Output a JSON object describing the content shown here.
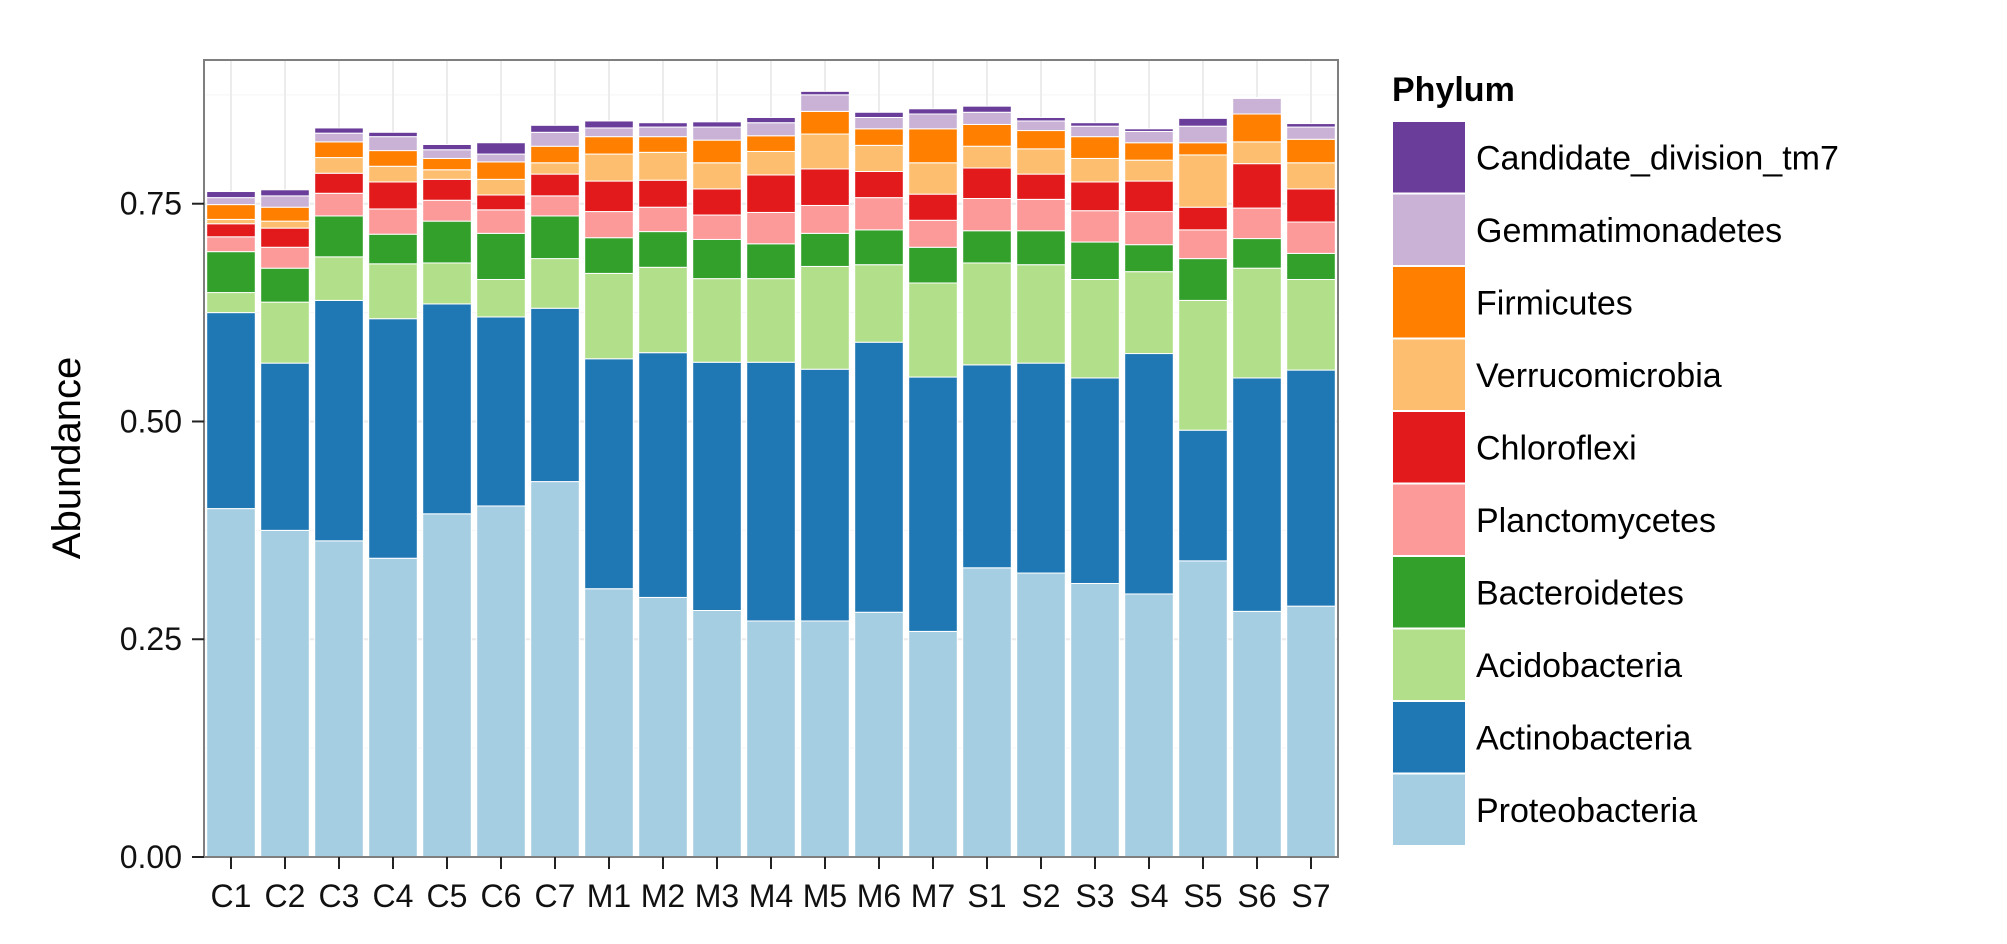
{
  "chart_data": {
    "type": "bar",
    "stacked": true,
    "title": "",
    "xlabel": "",
    "ylabel": "Abundance",
    "ylim": [
      0,
      0.915
    ],
    "yticks": [
      0,
      0.25,
      0.5,
      0.75
    ],
    "ytick_labels": [
      "0.00",
      "0.25",
      "0.50",
      "0.75"
    ],
    "grid": true,
    "legend_position": "right",
    "legend_title": "Phylum",
    "categories": [
      "C1",
      "C2",
      "C3",
      "C4",
      "C5",
      "C6",
      "C7",
      "M1",
      "M2",
      "M3",
      "M4",
      "M5",
      "M6",
      "M7",
      "S1",
      "S2",
      "S3",
      "S4",
      "S5",
      "S6",
      "S7"
    ],
    "series": [
      {
        "name": "Proteobacteria",
        "color": "#a6cee3",
        "values": [
          0.4,
          0.375,
          0.363,
          0.343,
          0.394,
          0.403,
          0.431,
          0.308,
          0.298,
          0.283,
          0.271,
          0.271,
          0.281,
          0.259,
          0.332,
          0.326,
          0.314,
          0.302,
          0.34,
          0.282,
          0.288
        ]
      },
      {
        "name": "Actinobacteria",
        "color": "#1f78b4",
        "values": [
          0.225,
          0.192,
          0.276,
          0.275,
          0.241,
          0.217,
          0.199,
          0.264,
          0.281,
          0.285,
          0.297,
          0.289,
          0.31,
          0.292,
          0.233,
          0.241,
          0.236,
          0.276,
          0.15,
          0.268,
          0.271
        ]
      },
      {
        "name": "Acidobacteria",
        "color": "#b2df8a",
        "values": [
          0.023,
          0.07,
          0.05,
          0.063,
          0.047,
          0.043,
          0.057,
          0.098,
          0.098,
          0.096,
          0.096,
          0.118,
          0.089,
          0.108,
          0.117,
          0.113,
          0.113,
          0.094,
          0.149,
          0.126,
          0.104
        ]
      },
      {
        "name": "Bacteroidetes",
        "color": "#33a02c",
        "values": [
          0.047,
          0.039,
          0.047,
          0.034,
          0.048,
          0.053,
          0.049,
          0.041,
          0.041,
          0.045,
          0.04,
          0.038,
          0.04,
          0.041,
          0.037,
          0.039,
          0.043,
          0.031,
          0.048,
          0.034,
          0.03
        ]
      },
      {
        "name": "Planctomycetes",
        "color": "#fb9a99",
        "values": [
          0.017,
          0.024,
          0.026,
          0.029,
          0.024,
          0.027,
          0.023,
          0.03,
          0.028,
          0.028,
          0.036,
          0.032,
          0.037,
          0.031,
          0.037,
          0.036,
          0.036,
          0.038,
          0.033,
          0.035,
          0.036
        ]
      },
      {
        "name": "Chloroflexi",
        "color": "#e31a1c",
        "values": [
          0.015,
          0.022,
          0.023,
          0.031,
          0.024,
          0.017,
          0.025,
          0.035,
          0.031,
          0.03,
          0.043,
          0.042,
          0.03,
          0.03,
          0.035,
          0.029,
          0.033,
          0.035,
          0.026,
          0.051,
          0.038
        ]
      },
      {
        "name": "Verrucomicrobia",
        "color": "#fdbf6f",
        "values": [
          0.005,
          0.008,
          0.018,
          0.018,
          0.011,
          0.018,
          0.013,
          0.031,
          0.032,
          0.03,
          0.027,
          0.04,
          0.03,
          0.036,
          0.025,
          0.029,
          0.027,
          0.024,
          0.06,
          0.025,
          0.03
        ]
      },
      {
        "name": "Firmicutes",
        "color": "#ff7f00",
        "values": [
          0.017,
          0.016,
          0.018,
          0.018,
          0.013,
          0.02,
          0.019,
          0.02,
          0.018,
          0.026,
          0.018,
          0.026,
          0.019,
          0.039,
          0.025,
          0.021,
          0.025,
          0.02,
          0.014,
          0.032,
          0.027
        ]
      },
      {
        "name": "Gemmatimonadetes",
        "color": "#cab2d6",
        "values": [
          0.008,
          0.013,
          0.01,
          0.016,
          0.01,
          0.009,
          0.016,
          0.01,
          0.011,
          0.015,
          0.015,
          0.019,
          0.013,
          0.017,
          0.014,
          0.011,
          0.012,
          0.013,
          0.019,
          0.018,
          0.014
        ]
      },
      {
        "name": "Candidate_division_tm7",
        "color": "#6a3d9a",
        "values": [
          0.007,
          0.007,
          0.006,
          0.005,
          0.006,
          0.013,
          0.008,
          0.008,
          0.005,
          0.006,
          0.006,
          0.004,
          0.006,
          0.006,
          0.007,
          0.004,
          0.004,
          0.003,
          0.009,
          0.001,
          0.004
        ]
      }
    ]
  }
}
